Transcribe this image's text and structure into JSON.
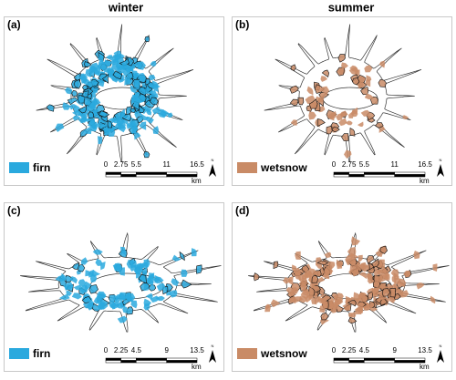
{
  "columns": [
    "winter",
    "summer"
  ],
  "panels": [
    {
      "label": "(a)",
      "legend": {
        "label": "firn",
        "color": "#2aa9de"
      },
      "scale": {
        "ticks": [
          "0",
          "2.75",
          "5.5",
          "11",
          "16.5"
        ],
        "unit": "km"
      },
      "north": "N"
    },
    {
      "label": "(b)",
      "legend": {
        "label": "wetsnow",
        "color": "#c98b66"
      },
      "scale": {
        "ticks": [
          "0",
          "2.75",
          "5.5",
          "11",
          "16.5"
        ],
        "unit": "km"
      },
      "north": "N"
    },
    {
      "label": "(c)",
      "legend": {
        "label": "firn",
        "color": "#2aa9de"
      },
      "scale": {
        "ticks": [
          "0",
          "2.25",
          "4.5",
          "9",
          "13.5"
        ],
        "unit": "km"
      },
      "north": "N"
    },
    {
      "label": "(d)",
      "legend": {
        "label": "wetsnow",
        "color": "#c98b66"
      },
      "scale": {
        "ticks": [
          "0",
          "2.25",
          "4.5",
          "9",
          "13.5"
        ],
        "unit": "km"
      },
      "north": "N"
    }
  ]
}
